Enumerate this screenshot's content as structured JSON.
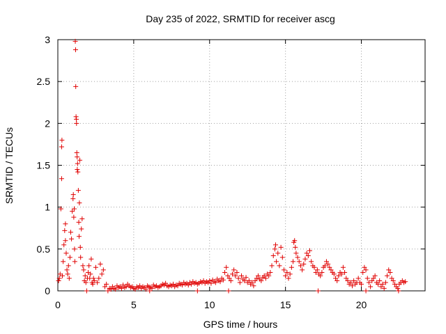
{
  "chart_data": {
    "type": "scatter",
    "title": "Day 235 of 2022, SRMTID for receiver ascg",
    "xlabel": "GPS time / hours",
    "ylabel": "SRMTID / TECUs",
    "xlim": [
      0,
      24.2
    ],
    "ylim": [
      0,
      3
    ],
    "x_ticks": [
      0,
      5,
      10,
      15,
      20
    ],
    "x_tick_labels": [
      "0",
      "5",
      "10",
      "15",
      "20"
    ],
    "y_ticks": [
      0,
      0.5,
      1,
      1.5,
      2,
      2.5,
      3
    ],
    "y_tick_labels": [
      "0",
      "0.5",
      "1",
      "1.5",
      "2",
      "2.5",
      "3"
    ],
    "grid": true,
    "marker": "+",
    "color": "#e00000",
    "series": [
      {
        "name": "SRMTID",
        "points": [
          [
            0.05,
            0.12
          ],
          [
            0.1,
            0.15
          ],
          [
            0.15,
            0.2
          ],
          [
            0.2,
            0.98
          ],
          [
            0.25,
            1.34
          ],
          [
            0.25,
            1.72
          ],
          [
            0.27,
            1.8
          ],
          [
            0.3,
            0.18
          ],
          [
            0.35,
            0.35
          ],
          [
            0.4,
            0.55
          ],
          [
            0.45,
            0.72
          ],
          [
            0.5,
            0.8
          ],
          [
            0.5,
            0.6
          ],
          [
            0.55,
            0.45
          ],
          [
            0.6,
            0.25
          ],
          [
            0.65,
            0.2
          ],
          [
            0.7,
            0.3
          ],
          [
            0.75,
            0.15
          ],
          [
            0.8,
            0.4
          ],
          [
            0.85,
            0.7
          ],
          [
            0.9,
            0.62
          ],
          [
            0.95,
            0.95
          ],
          [
            1.0,
            1.1
          ],
          [
            1.02,
            1.15
          ],
          [
            1.05,
            0.88
          ],
          [
            1.08,
            0.98
          ],
          [
            1.1,
            0.5
          ],
          [
            1.12,
            0.35
          ],
          [
            1.15,
            2.98
          ],
          [
            1.17,
            2.88
          ],
          [
            1.18,
            2.44
          ],
          [
            1.2,
            2.08
          ],
          [
            1.22,
            2.05
          ],
          [
            1.23,
            2.0
          ],
          [
            1.25,
            1.65
          ],
          [
            1.27,
            1.6
          ],
          [
            1.28,
            1.45
          ],
          [
            1.3,
            1.52
          ],
          [
            1.32,
            1.42
          ],
          [
            1.35,
            1.2
          ],
          [
            1.38,
            0.82
          ],
          [
            1.4,
            0.65
          ],
          [
            1.42,
            1.05
          ],
          [
            1.45,
            1.56
          ],
          [
            1.48,
            0.52
          ],
          [
            1.5,
            0.4
          ],
          [
            1.55,
            0.74
          ],
          [
            1.6,
            0.86
          ],
          [
            1.65,
            0.3
          ],
          [
            1.7,
            0.25
          ],
          [
            1.75,
            0.12
          ],
          [
            1.8,
            0.18
          ],
          [
            1.85,
            0.1
          ],
          [
            1.9,
            0.0
          ],
          [
            1.95,
            0.15
          ],
          [
            2.0,
            0.22
          ],
          [
            2.05,
            0.3
          ],
          [
            2.1,
            0.15
          ],
          [
            2.15,
            0.2
          ],
          [
            2.2,
            0.38
          ],
          [
            2.25,
            0.1
          ],
          [
            2.3,
            0.08
          ],
          [
            2.35,
            0.15
          ],
          [
            2.4,
            0.12
          ],
          [
            2.5,
            0.28
          ],
          [
            2.6,
            0.1
          ],
          [
            2.7,
            0.15
          ],
          [
            2.8,
            0.32
          ],
          [
            2.9,
            0.2
          ],
          [
            3.0,
            0.25
          ],
          [
            3.1,
            0.05
          ],
          [
            3.2,
            0.08
          ],
          [
            3.3,
            0.0
          ],
          [
            3.4,
            0.03
          ],
          [
            3.5,
            0.02
          ],
          [
            3.6,
            0.05
          ],
          [
            3.7,
            0.03
          ],
          [
            3.8,
            0.02
          ],
          [
            3.9,
            0.06
          ],
          [
            4.0,
            0.04
          ],
          [
            4.1,
            0.05
          ],
          [
            4.2,
            0.03
          ],
          [
            4.3,
            0.07
          ],
          [
            4.4,
            0.04
          ],
          [
            4.5,
            0.05
          ],
          [
            4.6,
            0.08
          ],
          [
            4.7,
            0.06
          ],
          [
            4.8,
            0.04
          ],
          [
            4.9,
            0.05
          ],
          [
            5.0,
            0.03
          ],
          [
            5.1,
            0.02
          ],
          [
            5.2,
            0.05
          ],
          [
            5.3,
            0.04
          ],
          [
            5.4,
            0.06
          ],
          [
            5.5,
            0.03
          ],
          [
            5.6,
            0.05
          ],
          [
            5.7,
            0.04
          ],
          [
            5.8,
            0.02
          ],
          [
            5.9,
            0.06
          ],
          [
            6.0,
            0.05
          ],
          [
            6.1,
            0.04
          ],
          [
            6.2,
            0.03
          ],
          [
            6.3,
            0.07
          ],
          [
            6.4,
            0.05
          ],
          [
            6.5,
            0.06
          ],
          [
            6.6,
            0.04
          ],
          [
            6.7,
            0.05
          ],
          [
            6.8,
            0.06
          ],
          [
            6.9,
            0.08
          ],
          [
            7.0,
            0.07
          ],
          [
            7.1,
            0.09
          ],
          [
            7.2,
            0.06
          ],
          [
            7.3,
            0.05
          ],
          [
            7.4,
            0.07
          ],
          [
            7.5,
            0.06
          ],
          [
            7.6,
            0.08
          ],
          [
            7.7,
            0.05
          ],
          [
            7.8,
            0.07
          ],
          [
            7.9,
            0.06
          ],
          [
            8.0,
            0.09
          ],
          [
            8.1,
            0.08
          ],
          [
            8.2,
            0.07
          ],
          [
            8.3,
            0.1
          ],
          [
            8.4,
            0.08
          ],
          [
            8.5,
            0.09
          ],
          [
            8.6,
            0.07
          ],
          [
            8.7,
            0.1
          ],
          [
            8.8,
            0.08
          ],
          [
            8.9,
            0.11
          ],
          [
            9.0,
            0.09
          ],
          [
            9.1,
            0.1
          ],
          [
            9.2,
            0.08
          ],
          [
            9.3,
            0.09
          ],
          [
            9.4,
            0.11
          ],
          [
            9.5,
            0.1
          ],
          [
            9.6,
            0.12
          ],
          [
            9.7,
            0.09
          ],
          [
            9.8,
            0.11
          ],
          [
            9.9,
            0.1
          ],
          [
            10.0,
            0.12
          ],
          [
            10.1,
            0.09
          ],
          [
            10.2,
            0.13
          ],
          [
            10.3,
            0.11
          ],
          [
            10.4,
            0.1
          ],
          [
            10.5,
            0.14
          ],
          [
            10.6,
            0.12
          ],
          [
            10.7,
            0.11
          ],
          [
            10.8,
            0.15
          ],
          [
            10.9,
            0.13
          ],
          [
            11.0,
            0.22
          ],
          [
            11.1,
            0.28
          ],
          [
            11.2,
            0.18
          ],
          [
            11.3,
            0.15
          ],
          [
            11.4,
            0.12
          ],
          [
            11.5,
            0.2
          ],
          [
            11.6,
            0.25
          ],
          [
            11.7,
            0.18
          ],
          [
            11.8,
            0.22
          ],
          [
            11.9,
            0.15
          ],
          [
            12.0,
            0.1
          ],
          [
            12.1,
            0.18
          ],
          [
            12.2,
            0.14
          ],
          [
            12.3,
            0.12
          ],
          [
            12.4,
            0.16
          ],
          [
            12.5,
            0.1
          ],
          [
            12.6,
            0.12
          ],
          [
            12.7,
            0.08
          ],
          [
            12.8,
            0.1
          ],
          [
            12.9,
            0.06
          ],
          [
            13.0,
            0.12
          ],
          [
            13.1,
            0.15
          ],
          [
            13.2,
            0.18
          ],
          [
            13.3,
            0.14
          ],
          [
            13.4,
            0.12
          ],
          [
            13.5,
            0.16
          ],
          [
            13.6,
            0.18
          ],
          [
            13.7,
            0.15
          ],
          [
            13.8,
            0.2
          ],
          [
            13.9,
            0.18
          ],
          [
            14.0,
            0.22
          ],
          [
            14.1,
            0.3
          ],
          [
            14.2,
            0.42
          ],
          [
            14.3,
            0.5
          ],
          [
            14.35,
            0.55
          ],
          [
            14.4,
            0.35
          ],
          [
            14.5,
            0.45
          ],
          [
            14.6,
            0.3
          ],
          [
            14.7,
            0.52
          ],
          [
            14.8,
            0.4
          ],
          [
            14.9,
            0.25
          ],
          [
            15.0,
            0.18
          ],
          [
            15.1,
            0.22
          ],
          [
            15.2,
            0.15
          ],
          [
            15.3,
            0.2
          ],
          [
            15.4,
            0.28
          ],
          [
            15.5,
            0.35
          ],
          [
            15.55,
            0.58
          ],
          [
            15.6,
            0.6
          ],
          [
            15.65,
            0.52
          ],
          [
            15.7,
            0.45
          ],
          [
            15.8,
            0.4
          ],
          [
            15.9,
            0.35
          ],
          [
            16.0,
            0.3
          ],
          [
            16.1,
            0.25
          ],
          [
            16.2,
            0.32
          ],
          [
            16.3,
            0.38
          ],
          [
            16.4,
            0.45
          ],
          [
            16.5,
            0.42
          ],
          [
            16.6,
            0.48
          ],
          [
            16.7,
            0.35
          ],
          [
            16.8,
            0.3
          ],
          [
            16.9,
            0.28
          ],
          [
            17.0,
            0.22
          ],
          [
            17.1,
            0.25
          ],
          [
            17.2,
            0.2
          ],
          [
            17.3,
            0.18
          ],
          [
            17.4,
            0.22
          ],
          [
            17.5,
            0.28
          ],
          [
            17.6,
            0.3
          ],
          [
            17.7,
            0.35
          ],
          [
            17.8,
            0.32
          ],
          [
            17.9,
            0.28
          ],
          [
            18.0,
            0.25
          ],
          [
            18.1,
            0.22
          ],
          [
            18.2,
            0.2
          ],
          [
            18.3,
            0.15
          ],
          [
            18.4,
            0.12
          ],
          [
            18.5,
            0.18
          ],
          [
            18.6,
            0.22
          ],
          [
            18.7,
            0.2
          ],
          [
            18.8,
            0.28
          ],
          [
            18.9,
            0.22
          ],
          [
            19.0,
            0.15
          ],
          [
            19.1,
            0.12
          ],
          [
            19.2,
            0.08
          ],
          [
            19.3,
            0.1
          ],
          [
            19.4,
            0.06
          ],
          [
            19.5,
            0.12
          ],
          [
            19.6,
            0.08
          ],
          [
            19.7,
            0.1
          ],
          [
            19.8,
            0.15
          ],
          [
            19.9,
            0.1
          ],
          [
            20.0,
            0.08
          ],
          [
            20.1,
            0.22
          ],
          [
            20.2,
            0.28
          ],
          [
            20.3,
            0.25
          ],
          [
            20.4,
            0.15
          ],
          [
            20.5,
            0.1
          ],
          [
            20.6,
            0.05
          ],
          [
            20.7,
            0.12
          ],
          [
            20.8,
            0.15
          ],
          [
            20.9,
            0.18
          ],
          [
            21.0,
            0.1
          ],
          [
            21.1,
            0.08
          ],
          [
            21.2,
            0.12
          ],
          [
            21.3,
            0.05
          ],
          [
            21.4,
            0.08
          ],
          [
            21.5,
            0.03
          ],
          [
            21.6,
            0.1
          ],
          [
            21.7,
            0.18
          ],
          [
            21.8,
            0.25
          ],
          [
            21.9,
            0.22
          ],
          [
            22.0,
            0.15
          ],
          [
            22.1,
            0.12
          ],
          [
            22.2,
            0.08
          ],
          [
            22.3,
            0.05
          ],
          [
            22.4,
            0.03
          ],
          [
            22.5,
            0.08
          ],
          [
            22.6,
            0.1
          ],
          [
            22.7,
            0.12
          ],
          [
            22.8,
            0.1
          ],
          [
            22.9,
            0.11
          ],
          [
            6.05,
            0.0
          ],
          [
            9.2,
            0.0
          ],
          [
            11.25,
            0.0
          ],
          [
            17.15,
            0.0
          ],
          [
            20.3,
            0.0
          ],
          [
            22.45,
            0.0
          ]
        ]
      }
    ]
  }
}
